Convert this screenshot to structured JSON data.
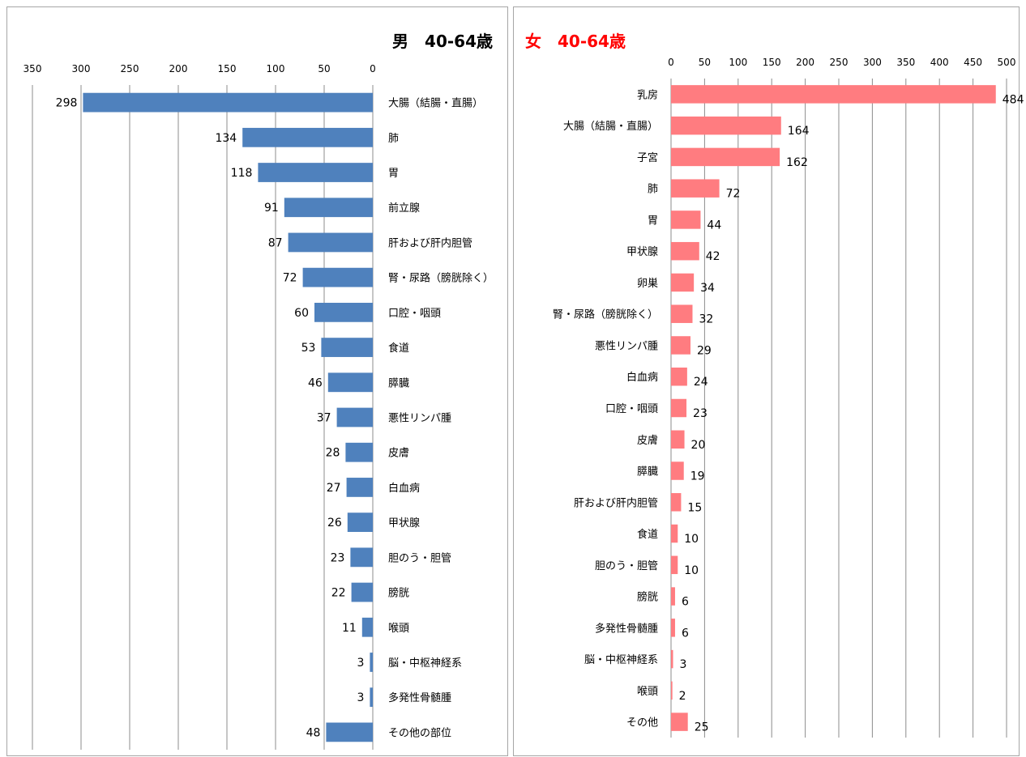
{
  "chart_data": [
    {
      "type": "bar",
      "orientation": "horizontal",
      "reversed_axis": true,
      "title": "男　40-64歳",
      "title_color": "#000000",
      "bar_color": "#4f81bd",
      "xlim": [
        0,
        350
      ],
      "ticks": [
        "350",
        "300",
        "250",
        "200",
        "150",
        "100",
        "50",
        "0"
      ],
      "grid": true,
      "categories": [
        "大腸（結腸・直腸）",
        "肺",
        "胃",
        "前立腺",
        "肝および肝内胆管",
        "腎・尿路（膀胱除く）",
        "口腔・咽頭",
        "食道",
        "膵臓",
        "悪性リンパ腫",
        "皮膚",
        "白血病",
        "甲状腺",
        "胆のう・胆管",
        "膀胱",
        "喉頭",
        "脳・中枢神経系",
        "多発性骨髄腫",
        "その他の部位"
      ],
      "values": [
        298,
        134,
        118,
        91,
        87,
        72,
        60,
        53,
        46,
        37,
        28,
        27,
        26,
        23,
        22,
        11,
        3,
        3,
        48
      ]
    },
    {
      "type": "bar",
      "orientation": "horizontal",
      "reversed_axis": false,
      "title": "女　40-64歳",
      "title_color": "#ff0000",
      "bar_color": "#ff7c80",
      "xlim": [
        0,
        500
      ],
      "ticks": [
        "0",
        "50",
        "100",
        "150",
        "200",
        "250",
        "300",
        "350",
        "400",
        "450",
        "500"
      ],
      "grid": true,
      "categories": [
        "乳房",
        "大腸（結腸・直腸）",
        "子宮",
        "肺",
        "胃",
        "甲状腺",
        "卵巣",
        "腎・尿路（膀胱除く）",
        "悪性リンパ腫",
        "白血病",
        "口腔・咽頭",
        "皮膚",
        "膵臓",
        "肝および肝内胆管",
        "食道",
        "胆のう・胆管",
        "膀胱",
        "多発性骨髄腫",
        "脳・中枢神経系",
        "喉頭",
        "その他"
      ],
      "values": [
        484,
        164,
        162,
        72,
        44,
        42,
        34,
        32,
        29,
        24,
        23,
        20,
        19,
        15,
        10,
        10,
        6,
        6,
        3,
        2,
        25
      ]
    }
  ]
}
